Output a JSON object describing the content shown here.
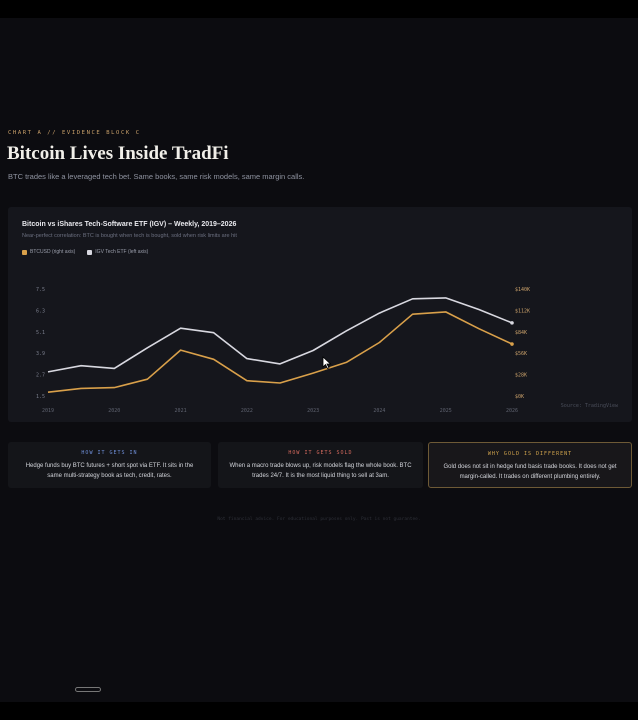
{
  "header": {
    "eyebrow": "CHART A // EVIDENCE BLOCK C",
    "title": "Bitcoin Lives Inside TradFi",
    "subtitle": "BTC trades like a leveraged tech bet. Same books, same risk models, same margin calls."
  },
  "chart_data": {
    "type": "line",
    "title": "Bitcoin vs iShares Tech-Software ETF (IGV) – Weekly, 2019–2026",
    "subtitle": "Near-perfect correlation: BTC is bought when tech is bought, sold when risk limits are hit",
    "x": [
      2019,
      2019.5,
      2020,
      2020.5,
      2021,
      2021.5,
      2022,
      2022.5,
      2023,
      2023.5,
      2024,
      2024.5,
      2025,
      2025.5,
      2026
    ],
    "x_ticks": [
      "2019",
      "2020",
      "2021",
      "2022",
      "2023",
      "2024",
      "2025",
      "2026"
    ],
    "left_ticks": [
      "1.5",
      "2.7",
      "3.9",
      "5.1",
      "6.3",
      "7.5"
    ],
    "right_ticks": [
      "$0K",
      "$28K",
      "$56K",
      "$84K",
      "$112K",
      "$140K"
    ],
    "left_range": [
      1.5,
      7.5
    ],
    "right_range": [
      0,
      140
    ],
    "series": [
      {
        "name": "BTCUSD (right axis)",
        "axis": "right",
        "color": "#d9a04a",
        "values": [
          5,
          10,
          11,
          22,
          60,
          48,
          20,
          17,
          30,
          44,
          70,
          107,
          110,
          88,
          68
        ]
      },
      {
        "name": "IGV Tech ETF (left axis)",
        "axis": "left",
        "color": "#d8d8e0",
        "values": [
          2.85,
          3.2,
          3.05,
          4.2,
          5.3,
          5.05,
          3.6,
          3.3,
          4.05,
          5.15,
          6.15,
          6.95,
          7.0,
          6.35,
          5.6
        ]
      }
    ],
    "source": "Source: TradingView",
    "grid": false,
    "legend_position": "top-left"
  },
  "cards": [
    {
      "heading": "HOW IT GETS IN",
      "body": "Hedge funds buy BTC futures + short spot via ETF. It sits in the same multi-strategy book as tech, credit, rates.",
      "color": "#6f8fd9"
    },
    {
      "heading": "HOW IT GETS SOLD",
      "body": "When a macro trade blows up, risk models flag the whole book. BTC trades 24/7. It is the most liquid thing to sell at 3am.",
      "color": "#d56a5e"
    },
    {
      "heading": "WHY GOLD IS DIFFERENT",
      "body": "Gold does not sit in hedge fund basis trade books. It does not get margin-called. It trades on different plumbing entirely.",
      "color": "#d2a54d"
    }
  ],
  "footer": {
    "note": "Not financial advice. For educational purposes only. Past is not guarantee."
  },
  "colors": {
    "background": "#0c0c10",
    "panel": "#15161c",
    "accent": "#c9a06a"
  }
}
